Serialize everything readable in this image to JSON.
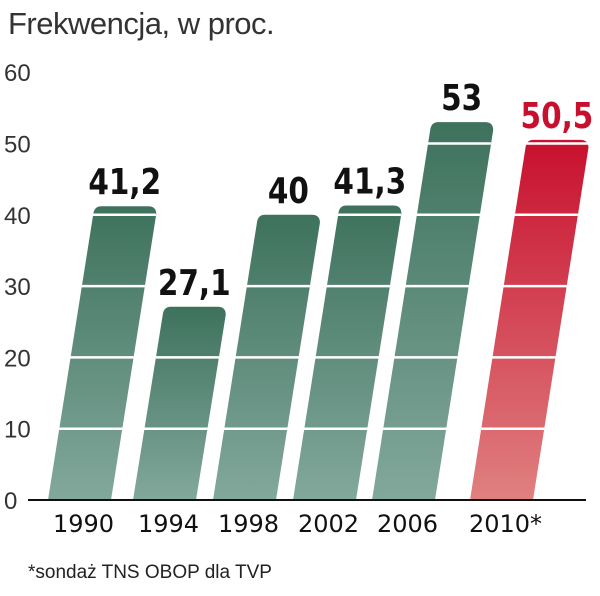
{
  "chart_data": {
    "type": "bar",
    "title": "Frekwencja, w proc.",
    "categories": [
      "1990",
      "1994",
      "1998",
      "2002",
      "2006",
      "2010*"
    ],
    "values": [
      41.2,
      27.1,
      40,
      41.3,
      53,
      50.5
    ],
    "value_labels": [
      "41,2",
      "27,1",
      "40",
      "41,3",
      "53",
      "50,5"
    ],
    "highlight_index": 5,
    "ylim": [
      0,
      60
    ],
    "yticks": [
      0,
      10,
      20,
      30,
      40,
      50,
      60
    ],
    "xlabel": "",
    "ylabel": "",
    "grid": true,
    "footnote": "*sondaż TNS OBOP dla TVP"
  },
  "colors": {
    "green_top": "#3e725d",
    "green_bottom": "#82a89c",
    "red_top": "#c8102e",
    "red_bottom": "#e08080",
    "highlight_label": "#c8102e",
    "label": "#111111"
  }
}
